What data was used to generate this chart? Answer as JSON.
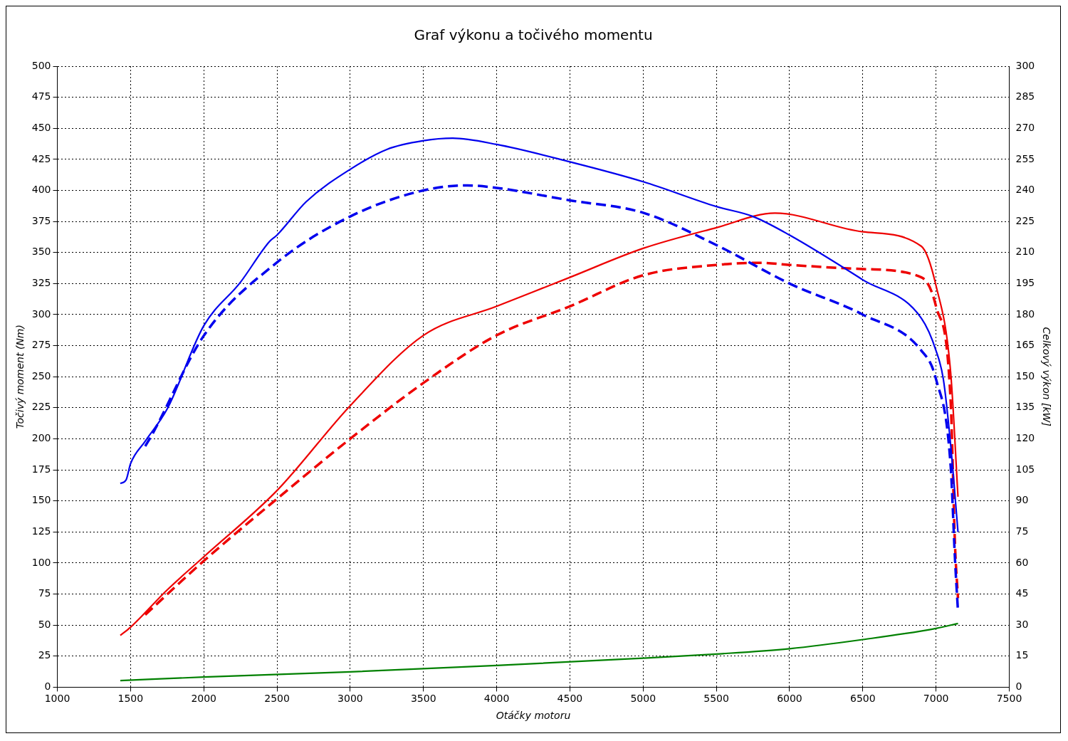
{
  "chart_data": {
    "type": "line",
    "title": "Graf výkonu a točivého momentu",
    "xlabel": "Otáčky motoru",
    "ylabel": "Točivý moment (Nm)",
    "y2label": "Celkový výkon [kW]",
    "xlim": [
      1000,
      7500
    ],
    "xticks": [
      1000,
      1500,
      2000,
      2500,
      3000,
      3500,
      4000,
      4500,
      5000,
      5500,
      6000,
      6500,
      7000,
      7500
    ],
    "ylim": [
      0,
      500
    ],
    "yticks": [
      0,
      25,
      50,
      75,
      100,
      125,
      150,
      175,
      200,
      225,
      250,
      275,
      300,
      325,
      350,
      375,
      400,
      425,
      450,
      475,
      500
    ],
    "y2lim": [
      0,
      300
    ],
    "y2ticks": [
      0,
      15,
      30,
      45,
      60,
      75,
      90,
      105,
      120,
      135,
      150,
      165,
      180,
      195,
      210,
      225,
      240,
      255,
      270,
      285,
      300
    ],
    "grid": true,
    "legend": false,
    "marker": "none",
    "series": [
      {
        "type": "line",
        "axis": "y",
        "color": "#0000ee",
        "line_style": "solid",
        "x": [
          1430,
          1470,
          1500,
          1600,
          1750,
          2000,
          2250,
          2450,
          2500,
          2700,
          3000,
          3250,
          3500,
          3700,
          4000,
          4500,
          5000,
          5500,
          5750,
          6000,
          6500,
          6900,
          7000,
          7050,
          7100,
          7150
        ],
        "values": [
          164,
          167,
          180,
          198,
          224,
          291,
          326,
          359,
          364,
          391,
          417,
          433,
          440,
          442,
          437,
          423,
          407,
          387,
          379,
          364,
          328,
          297,
          271,
          248,
          195,
          125
        ]
      },
      {
        "type": "line",
        "axis": "y",
        "color": "#0000ee",
        "line_style": "dashed",
        "x": [
          1600,
          1650,
          2000,
          2500,
          3000,
          3500,
          3800,
          4000,
          4500,
          5000,
          5500,
          6000,
          6500,
          6900,
          7000,
          7100,
          7130,
          7150
        ],
        "values": [
          194,
          204,
          283,
          342,
          379,
          400,
          404,
          402,
          392,
          382,
          356,
          325,
          300,
          271,
          248,
          178,
          102,
          61
        ]
      },
      {
        "type": "line",
        "axis": "y2",
        "color": "#ee0000",
        "line_style": "solid",
        "x": [
          1430,
          1500,
          1750,
          2000,
          2500,
          3000,
          3500,
          4000,
          4500,
          5000,
          5500,
          5900,
          6500,
          6900,
          7000,
          7100,
          7150
        ],
        "values": [
          25,
          29,
          47,
          63,
          95,
          136,
          170,
          184,
          198,
          212,
          222,
          229,
          220,
          213,
          194,
          152,
          92
        ]
      },
      {
        "type": "line",
        "axis": "y2",
        "color": "#ee0000",
        "line_style": "dashed",
        "x": [
          1600,
          2000,
          2500,
          3000,
          3500,
          4000,
          4500,
          5000,
          5500,
          5800,
          6000,
          6500,
          6900,
          7000,
          7100,
          7130,
          7150
        ],
        "values": [
          35,
          61,
          91,
          120,
          147,
          170,
          184,
          199,
          204,
          205,
          204,
          202,
          198,
          184,
          138,
          68,
          43
        ]
      },
      {
        "type": "line",
        "axis": "y2",
        "color": "#008000",
        "line_style": "solid",
        "x": [
          1430,
          2000,
          3000,
          4000,
          5000,
          5500,
          6000,
          6500,
          7000,
          7150
        ],
        "values": [
          3.2,
          4.9,
          7.4,
          10.5,
          14,
          16,
          18.6,
          23,
          28.4,
          30.8
        ]
      }
    ]
  }
}
